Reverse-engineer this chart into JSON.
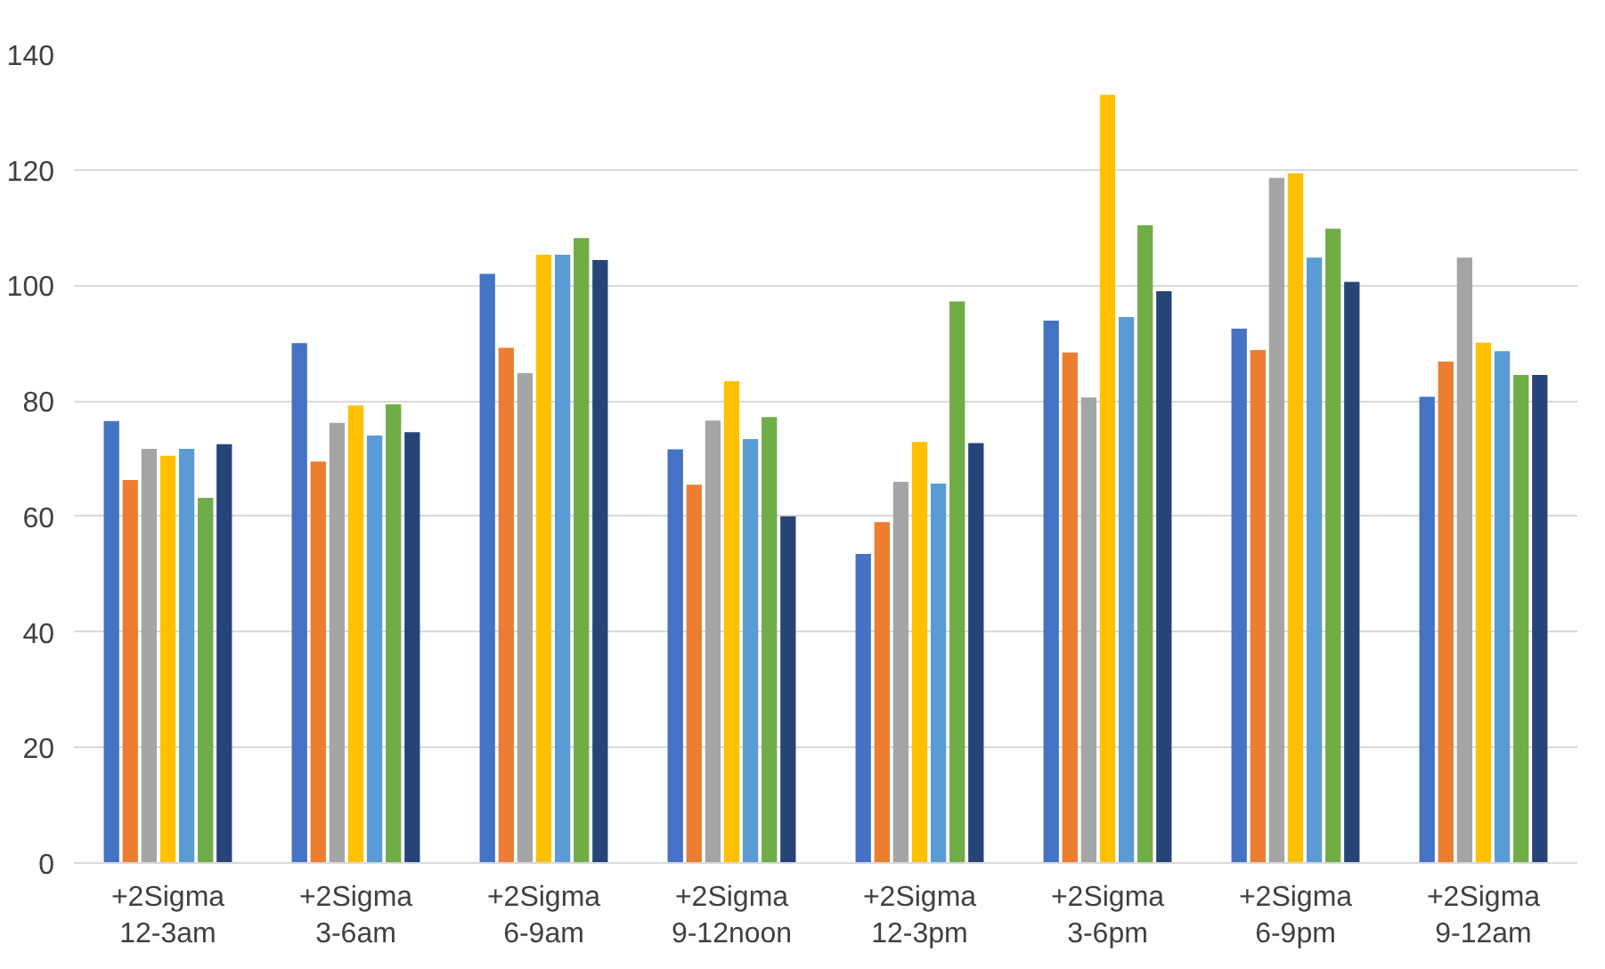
{
  "chart_data": {
    "type": "bar",
    "categories": [
      "+2Sigma\n12-3am",
      "+2Sigma\n3-6am",
      "+2Sigma\n6-9am",
      "+2Sigma\n9-12noon",
      "+2Sigma\n12-3pm",
      "+2Sigma\n3-6pm",
      "+2Sigma\n6-9pm",
      "+2Sigma\n9-12am"
    ],
    "series": [
      {
        "color": "#4472c4",
        "values": [
          76.5,
          90,
          102,
          71.6,
          53.5,
          93.9,
          92.5,
          80.7
        ]
      },
      {
        "color": "#ed7d31",
        "values": [
          66.3,
          69.5,
          89.2,
          65.5,
          59,
          88.4,
          88.8,
          86.8
        ]
      },
      {
        "color": "#a5a5a5",
        "values": [
          71.7,
          76.2,
          84.8,
          76.6,
          66,
          80.6,
          118.6,
          104.8
        ]
      },
      {
        "color": "#ffc000",
        "values": [
          70.5,
          79.2,
          105.3,
          83.4,
          72.9,
          133,
          119.4,
          90.1
        ]
      },
      {
        "color": "#5b9bd5",
        "values": [
          71.7,
          74,
          105.3,
          73.4,
          65.7,
          94.5,
          104.8,
          88.6
        ]
      },
      {
        "color": "#70ad47",
        "values": [
          63.2,
          79.4,
          108.2,
          77.2,
          97.2,
          110.4,
          109.8,
          84.5
        ]
      },
      {
        "color": "#264478",
        "values": [
          72.5,
          74.6,
          104.4,
          60,
          72.7,
          99,
          100.6,
          84.5
        ]
      }
    ],
    "ylim": [
      0,
      140
    ],
    "yticks": [
      0,
      20,
      40,
      60,
      80,
      100,
      120,
      140
    ],
    "grid": "y"
  }
}
